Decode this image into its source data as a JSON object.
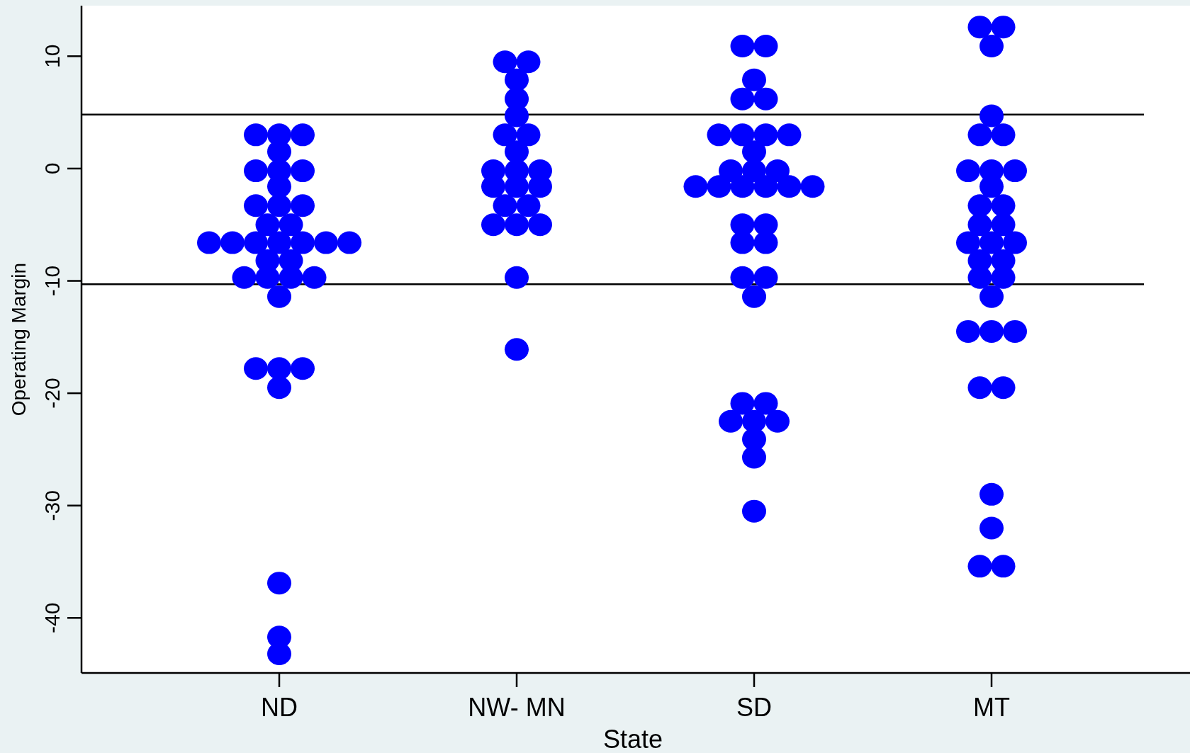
{
  "chart_data": {
    "type": "scatter",
    "xlabel": "State",
    "ylabel": "Operating Margin",
    "categories": [
      "ND",
      "NW- MN",
      "SD",
      "MT"
    ],
    "ylim": [
      -44.9,
      14.5
    ],
    "yticks": [
      -40,
      -30,
      -20,
      -10,
      0,
      10
    ],
    "grid": false,
    "marker": "circle",
    "ref_lines": [
      {
        "axis": "y",
        "value": 4.8,
        "color": "#000000"
      },
      {
        "axis": "y",
        "value": -10.3,
        "color": "#000000"
      }
    ],
    "series": [
      {
        "color": "#0000ff",
        "x": [
          "ND",
          "ND",
          "ND",
          "ND",
          "ND",
          "ND",
          "ND",
          "ND",
          "ND",
          "ND",
          "ND",
          "ND",
          "ND",
          "ND",
          "ND",
          "ND",
          "ND",
          "ND",
          "ND",
          "ND",
          "ND",
          "ND",
          "ND",
          "ND",
          "ND",
          "ND",
          "ND",
          "ND",
          "ND",
          "ND",
          "ND",
          "ND",
          "ND"
        ],
        "values": [
          3.0,
          3.0,
          3.0,
          1.5,
          -0.2,
          -0.2,
          -0.2,
          -1.6,
          -3.3,
          -3.3,
          -3.3,
          -5.0,
          -5.0,
          -6.6,
          -6.6,
          -6.6,
          -6.6,
          -6.6,
          -6.6,
          -6.6,
          -8.2,
          -8.2,
          -9.7,
          -9.7,
          -9.7,
          -9.7,
          -11.4,
          -17.8,
          -17.8,
          -17.8,
          -19.5,
          -36.9,
          -41.7
        ]
      },
      {
        "color": "#0000ff",
        "x": [
          "ND",
          "NW- MN",
          "NW- MN",
          "NW- MN",
          "NW- MN",
          "NW- MN",
          "NW- MN",
          "NW- MN",
          "NW- MN",
          "NW- MN",
          "NW- MN",
          "NW- MN",
          "NW- MN",
          "NW- MN",
          "NW- MN",
          "NW- MN",
          "NW- MN",
          "NW- MN",
          "NW- MN",
          "NW- MN",
          "NW- MN",
          "NW- MN"
        ],
        "values": [
          -43.2,
          9.5,
          9.5,
          7.9,
          6.2,
          4.7,
          3.0,
          3.0,
          1.5,
          -0.2,
          -0.2,
          -0.2,
          -1.6,
          -1.6,
          -1.6,
          -3.3,
          -3.3,
          -5.0,
          -5.0,
          -5.0,
          -9.7,
          -16.1
        ]
      },
      {
        "color": "#0000ff",
        "x": [
          "SD",
          "SD",
          "SD",
          "SD",
          "SD",
          "SD",
          "SD",
          "SD",
          "SD",
          "SD",
          "SD",
          "SD",
          "SD",
          "SD",
          "SD",
          "SD",
          "SD",
          "SD",
          "SD",
          "SD",
          "SD",
          "SD",
          "SD",
          "SD",
          "SD",
          "SD",
          "SD",
          "SD",
          "SD",
          "SD",
          "SD",
          "SD",
          "SD",
          "SD"
        ],
        "values": [
          10.9,
          10.9,
          7.9,
          6.2,
          6.2,
          3.0,
          3.0,
          3.0,
          3.0,
          1.5,
          -0.2,
          -0.2,
          -0.2,
          -1.6,
          -1.6,
          -1.6,
          -1.6,
          -1.6,
          -1.6,
          -5.0,
          -5.0,
          -6.6,
          -6.6,
          -9.7,
          -9.7,
          -11.4,
          -20.9,
          -20.9,
          -22.5,
          -22.5,
          -22.5,
          -24.1,
          -25.7,
          -30.5
        ]
      },
      {
        "color": "#0000ff",
        "x": [
          "MT",
          "MT",
          "MT",
          "MT",
          "MT",
          "MT",
          "MT",
          "MT",
          "MT",
          "MT",
          "MT",
          "MT",
          "MT",
          "MT",
          "MT",
          "MT",
          "MT",
          "MT",
          "MT",
          "MT",
          "MT",
          "MT",
          "MT",
          "MT",
          "MT",
          "MT",
          "MT",
          "MT",
          "MT",
          "MT",
          "MT"
        ],
        "values": [
          12.6,
          12.6,
          10.9,
          4.7,
          3.0,
          3.0,
          -0.2,
          -0.2,
          -0.2,
          -1.6,
          -3.3,
          -3.3,
          -5.0,
          -5.0,
          -6.6,
          -6.6,
          -6.6,
          -8.2,
          -8.2,
          -9.7,
          -9.7,
          -11.4,
          -14.5,
          -14.5,
          -14.5,
          -19.5,
          -19.5,
          -29.0,
          -32.0,
          -35.4,
          -35.4
        ]
      }
    ]
  }
}
